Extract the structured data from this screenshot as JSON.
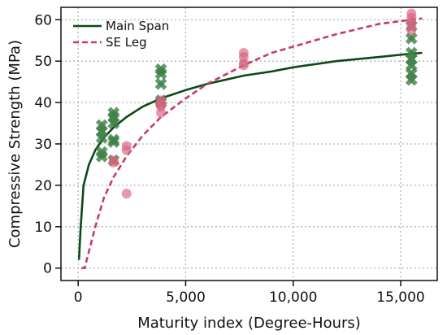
{
  "chart_data": {
    "type": "scatter",
    "xlabel": "Maturity index (Degree-Hours)",
    "ylabel": "Compressive Strength (MPa)",
    "xlim": [
      -800,
      16700
    ],
    "ylim": [
      -3,
      63
    ],
    "xticks": [
      0,
      5000,
      10000,
      15000
    ],
    "xtick_labels": [
      "0",
      "5,000",
      "10,000",
      "15,000"
    ],
    "yticks": [
      0,
      10,
      20,
      30,
      40,
      50,
      60
    ],
    "ytick_labels": [
      "0",
      "10",
      "20",
      "30",
      "40",
      "50",
      "60"
    ],
    "grid": true,
    "legend_position": "top-left",
    "legend": [
      {
        "label": "Main Span",
        "style": "solid",
        "color": "#0b4a14"
      },
      {
        "label": "SE Leg",
        "style": "dashed",
        "color": "#c73a6b"
      }
    ],
    "series": [
      {
        "name": "Main Span",
        "kind": "points",
        "marker": "x",
        "color": "#3f7f47",
        "points": [
          [
            1100,
            34.5
          ],
          [
            1100,
            33.0
          ],
          [
            1100,
            31.5
          ],
          [
            1100,
            28.0
          ],
          [
            1100,
            27.0
          ],
          [
            1650,
            37.5
          ],
          [
            1650,
            36.5
          ],
          [
            1650,
            35.0
          ],
          [
            1650,
            31.0
          ],
          [
            1650,
            30.5
          ],
          [
            1650,
            26.0
          ],
          [
            3850,
            48.0
          ],
          [
            3850,
            47.0
          ],
          [
            3850,
            44.5
          ],
          [
            3850,
            40.5
          ],
          [
            3850,
            40.0
          ],
          [
            15500,
            58.5
          ],
          [
            15500,
            55.5
          ],
          [
            15500,
            52.0
          ],
          [
            15500,
            50.5
          ],
          [
            15500,
            49.0
          ],
          [
            15500,
            47.0
          ],
          [
            15500,
            45.5
          ]
        ]
      },
      {
        "name": "SE Leg",
        "kind": "points",
        "marker": "o",
        "color": "#d9627f",
        "points": [
          [
            1650,
            26.0
          ],
          [
            1650,
            25.5
          ],
          [
            2250,
            29.5
          ],
          [
            2250,
            28.5
          ],
          [
            2250,
            18.0
          ],
          [
            3850,
            40.5
          ],
          [
            3850,
            40.0
          ],
          [
            3850,
            39.5
          ],
          [
            3850,
            39.0
          ],
          [
            3850,
            37.5
          ],
          [
            7700,
            52.0
          ],
          [
            7700,
            51.0
          ],
          [
            7700,
            49.5
          ],
          [
            7700,
            49.0
          ],
          [
            15500,
            61.5
          ],
          [
            15500,
            60.5
          ],
          [
            15500,
            59.5
          ],
          [
            15500,
            58.5
          ],
          [
            15500,
            57.5
          ]
        ]
      },
      {
        "name": "Main Span",
        "kind": "fit",
        "style": "solid",
        "color": "#0b4a14",
        "x": [
          40,
          120,
          250,
          500,
          800,
          1200,
          1650,
          2250,
          3000,
          3850,
          5000,
          6000,
          7700,
          9000,
          10000,
          12000,
          14000,
          15500,
          16000
        ],
        "y": [
          2.0,
          10.0,
          20.0,
          25.0,
          28.5,
          31.5,
          34.0,
          36.5,
          39.0,
          41.0,
          43.0,
          44.5,
          46.5,
          47.5,
          48.5,
          50.0,
          51.0,
          51.8,
          52.0
        ]
      },
      {
        "name": "SE Leg",
        "kind": "fit",
        "style": "dashed",
        "color": "#c73a6b",
        "x": [
          150,
          300,
          500,
          800,
          1200,
          1650,
          2250,
          3000,
          3850,
          5000,
          6000,
          7700,
          9000,
          10000,
          12000,
          14000,
          15500,
          16000
        ],
        "y": [
          0.0,
          0.0,
          4.0,
          10.0,
          17.0,
          22.0,
          27.0,
          32.0,
          36.5,
          41.0,
          44.5,
          49.0,
          52.0,
          53.5,
          56.5,
          59.0,
          60.0,
          60.3
        ]
      }
    ]
  }
}
